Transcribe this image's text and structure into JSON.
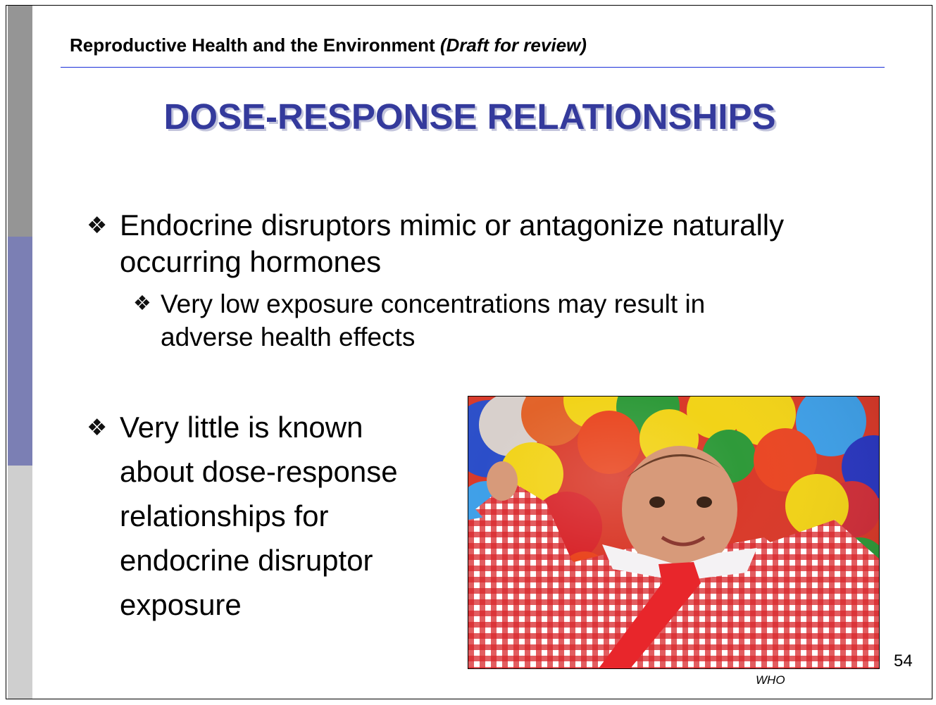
{
  "header": {
    "title": "Reproductive Health and the Environment",
    "draft_note": "(Draft for review)"
  },
  "title": "DOSE-RESPONSE RELATIONSHIPS",
  "bullets": [
    {
      "icon": "diamond-bullet-icon",
      "lines": [
        "Endocrine disruptors mimic or antagonize naturally",
        "occurring hormones"
      ]
    },
    {
      "icon": "diamond-bullet-icon",
      "lines": [
        "Very low exposure concentrations may result in",
        "adverse health effects"
      ]
    },
    {
      "icon": "diamond-bullet-icon",
      "lines": [
        "Very little is known",
        "about dose-response",
        "relationships for",
        "endocrine disruptor",
        "exposure"
      ]
    }
  ],
  "photo": {
    "caption": "WHO"
  },
  "page_number": "54",
  "colors": {
    "title": "#343a9c",
    "header_rule": "#1a2fd8",
    "sidebar_top": "#959595",
    "sidebar_mid": "#7b7fb4",
    "sidebar_bottom": "#cfcfcf"
  }
}
